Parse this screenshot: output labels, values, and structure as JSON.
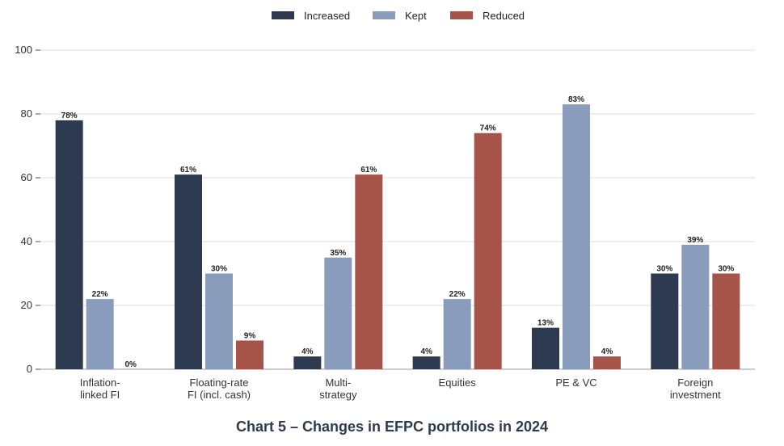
{
  "chart_data": {
    "type": "bar",
    "title": "Chart 5 – Changes in EFPC portfolios in 2024",
    "categories": [
      [
        "Inflation-",
        "linked FI"
      ],
      [
        "Floating-rate",
        "FI (incl. cash)"
      ],
      [
        "Multi-",
        "strategy"
      ],
      [
        "Equities"
      ],
      [
        "PE & VC"
      ],
      [
        "Foreign",
        "investment"
      ]
    ],
    "series": [
      {
        "name": "Increased",
        "color": "#2d3a50",
        "values": [
          78,
          61,
          4,
          4,
          13,
          30
        ],
        "labels": [
          "78%",
          "61%",
          "4%",
          "4%",
          "13%",
          "30%"
        ]
      },
      {
        "name": "Kept",
        "color": "#8a9cbb",
        "values": [
          22,
          30,
          35,
          22,
          83,
          39
        ],
        "labels": [
          "22%",
          "30%",
          "35%",
          "22%",
          "83%",
          "39%"
        ]
      },
      {
        "name": "Reduced",
        "color": "#a6534a",
        "values": [
          0,
          9,
          61,
          74,
          4,
          30
        ],
        "labels": [
          "0%",
          "9%",
          "61%",
          "74%",
          "4%",
          "30%"
        ]
      }
    ],
    "ylim": [
      0,
      100
    ],
    "yticks": [
      0,
      20,
      40,
      60,
      80,
      100
    ],
    "ytick_labels": [
      "0",
      "20",
      "40",
      "60",
      "80",
      "100"
    ],
    "grid": true,
    "legend_position": "top-center"
  }
}
